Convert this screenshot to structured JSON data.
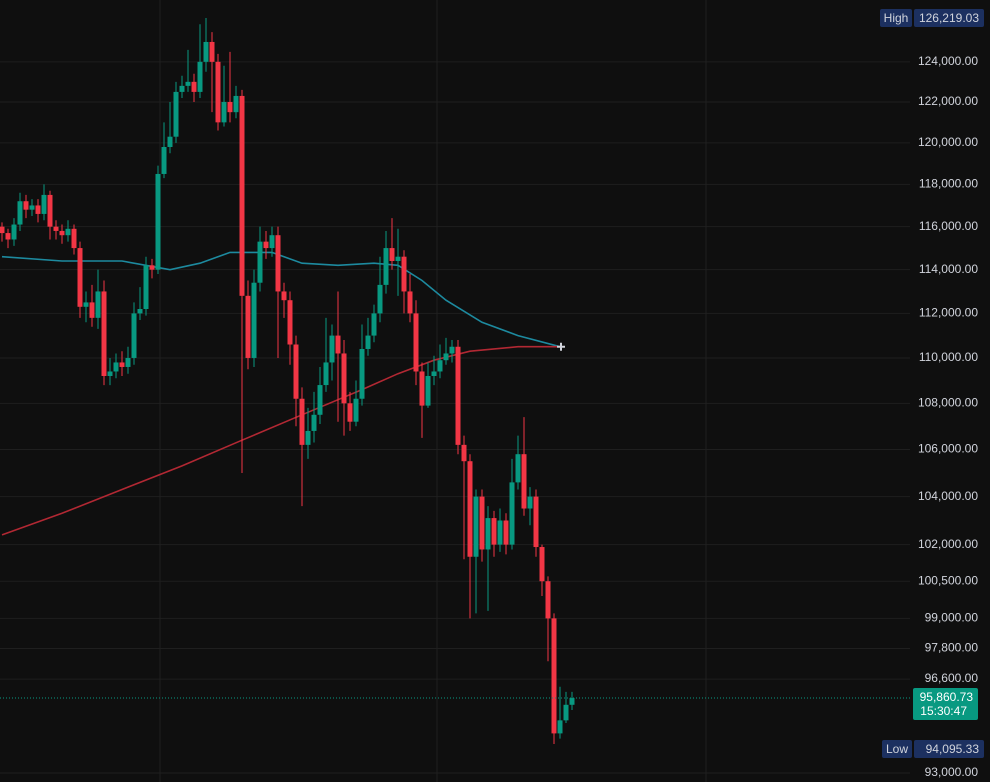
{
  "chart_data": {
    "type": "candlestick",
    "log_scale": true,
    "grid": true,
    "up_color": "#089981",
    "down_color": "#f23645",
    "ylim": [
      92660,
      127140
    ],
    "yticks": [
      {
        "value": 124000,
        "label": "124,000.00"
      },
      {
        "value": 122000,
        "label": "122,000.00"
      },
      {
        "value": 120000,
        "label": "120,000.00"
      },
      {
        "value": 118000,
        "label": "118,000.00"
      },
      {
        "value": 116000,
        "label": "116,000.00"
      },
      {
        "value": 114000,
        "label": "114,000.00"
      },
      {
        "value": 112000,
        "label": "112,000.00"
      },
      {
        "value": 110000,
        "label": "110,000.00"
      },
      {
        "value": 108000,
        "label": "108,000.00"
      },
      {
        "value": 106000,
        "label": "106,000.00"
      },
      {
        "value": 104000,
        "label": "104,000.00"
      },
      {
        "value": 102000,
        "label": "102,000.00"
      },
      {
        "value": 100500,
        "label": "100,500.00"
      },
      {
        "value": 99000,
        "label": "99,000.00"
      },
      {
        "value": 97800,
        "label": "97,800.00"
      },
      {
        "value": 96600,
        "label": "96,600.00"
      },
      {
        "value": 93000,
        "label": "93,000.00"
      }
    ],
    "ohlc": [
      [
        116000,
        116200,
        115300,
        115700
      ],
      [
        115700,
        115900,
        115000,
        115400
      ],
      [
        115400,
        116400,
        115100,
        116100
      ],
      [
        116100,
        117600,
        115800,
        117200
      ],
      [
        117200,
        117500,
        116400,
        116800
      ],
      [
        116800,
        117300,
        116500,
        117000
      ],
      [
        117000,
        117300,
        116200,
        116600
      ],
      [
        116600,
        118000,
        116300,
        117500
      ],
      [
        117500,
        117700,
        115400,
        116000
      ],
      [
        116000,
        116300,
        115400,
        115800
      ],
      [
        115800,
        116100,
        115200,
        115600
      ],
      [
        115600,
        116300,
        115300,
        115900
      ],
      [
        115900,
        116100,
        114700,
        115000
      ],
      [
        115000,
        115300,
        111800,
        112300
      ],
      [
        112300,
        113000,
        111600,
        112500
      ],
      [
        112500,
        113300,
        111400,
        111800
      ],
      [
        111800,
        114000,
        111300,
        113000
      ],
      [
        113000,
        113500,
        108800,
        109200
      ],
      [
        109200,
        110000,
        108800,
        109400
      ],
      [
        109400,
        110200,
        109100,
        109800
      ],
      [
        109800,
        110300,
        109200,
        109600
      ],
      [
        109600,
        110500,
        109300,
        110000
      ],
      [
        110000,
        112500,
        109700,
        112000
      ],
      [
        112000,
        113200,
        111700,
        112200
      ],
      [
        112200,
        114600,
        111900,
        114200
      ],
      [
        114200,
        114500,
        113600,
        114000
      ],
      [
        114000,
        118900,
        113800,
        118500
      ],
      [
        118500,
        121000,
        118300,
        119800
      ],
      [
        119800,
        122000,
        119500,
        120300
      ],
      [
        120300,
        123000,
        120000,
        122500
      ],
      [
        122500,
        123300,
        122200,
        122800
      ],
      [
        122800,
        124600,
        122500,
        123000
      ],
      [
        123000,
        123400,
        122000,
        122500
      ],
      [
        122500,
        125900,
        122200,
        124000
      ],
      [
        124000,
        126219.03,
        123500,
        125000
      ],
      [
        125000,
        125500,
        121500,
        124000
      ],
      [
        124000,
        124400,
        120600,
        121000
      ],
      [
        121000,
        123800,
        120800,
        122000
      ],
      [
        122000,
        124500,
        121000,
        121500
      ],
      [
        121500,
        122800,
        121200,
        122300
      ],
      [
        122300,
        122600,
        105000,
        112800
      ],
      [
        112800,
        113500,
        109500,
        110000
      ],
      [
        110000,
        114000,
        109600,
        113400
      ],
      [
        113400,
        116000,
        113000,
        115300
      ],
      [
        115300,
        115800,
        114500,
        115000
      ],
      [
        115000,
        116000,
        114600,
        115600
      ],
      [
        115600,
        116000,
        110000,
        113000
      ],
      [
        113000,
        113400,
        111800,
        112600
      ],
      [
        112600,
        113000,
        109700,
        110600
      ],
      [
        110600,
        111000,
        107000,
        108200
      ],
      [
        108200,
        108700,
        103600,
        106200
      ],
      [
        106200,
        107800,
        105600,
        106800
      ],
      [
        106800,
        108500,
        106300,
        107500
      ],
      [
        107500,
        109600,
        107100,
        108800
      ],
      [
        108800,
        111800,
        108500,
        109800
      ],
      [
        109800,
        111500,
        109000,
        111000
      ],
      [
        111000,
        113000,
        107200,
        110200
      ],
      [
        110200,
        110800,
        106600,
        108000
      ],
      [
        108000,
        108500,
        106800,
        107200
      ],
      [
        107200,
        109000,
        107000,
        108200
      ],
      [
        108200,
        111500,
        107900,
        110400
      ],
      [
        110400,
        111800,
        110100,
        111000
      ],
      [
        111000,
        112400,
        110700,
        112000
      ],
      [
        112000,
        114600,
        111600,
        113300
      ],
      [
        113300,
        115800,
        112900,
        115000
      ],
      [
        115000,
        116400,
        114000,
        114400
      ],
      [
        114400,
        115900,
        112800,
        114600
      ],
      [
        114600,
        114900,
        112000,
        113000
      ],
      [
        113000,
        113800,
        111600,
        112000
      ],
      [
        112000,
        112600,
        108800,
        109400
      ],
      [
        109400,
        109800,
        106500,
        107900
      ],
      [
        107900,
        109800,
        107800,
        109200
      ],
      [
        109200,
        110100,
        108800,
        109400
      ],
      [
        109400,
        110600,
        109100,
        109900
      ],
      [
        109900,
        110900,
        109700,
        110200
      ],
      [
        110200,
        110800,
        109800,
        110500
      ],
      [
        110500,
        110800,
        105800,
        106200
      ],
      [
        106200,
        106600,
        101400,
        105500
      ],
      [
        105500,
        105800,
        99000,
        101500
      ],
      [
        101500,
        104300,
        99200,
        104000
      ],
      [
        104000,
        104300,
        101300,
        101800
      ],
      [
        101800,
        103600,
        99300,
        103100
      ],
      [
        103100,
        103400,
        101500,
        102000
      ],
      [
        102000,
        103500,
        101700,
        103000
      ],
      [
        103000,
        103300,
        101600,
        102000
      ],
      [
        102000,
        105600,
        101800,
        104600
      ],
      [
        104600,
        106600,
        104300,
        105800
      ],
      [
        105800,
        107400,
        103200,
        103500
      ],
      [
        103500,
        104400,
        102800,
        104000
      ],
      [
        104000,
        104300,
        101500,
        101900
      ],
      [
        101900,
        102000,
        99900,
        100500
      ],
      [
        100500,
        100700,
        97300,
        99000
      ],
      [
        99000,
        99200,
        94095.33,
        94500
      ],
      [
        94500,
        96300,
        94300,
        95000
      ],
      [
        95000,
        96100,
        94900,
        95600
      ],
      [
        95600,
        96100,
        95400,
        95860.73
      ]
    ],
    "moving_averages": [
      {
        "color": "#1d8a9f",
        "x": [
          0,
          10,
          20,
          28,
          33,
          38,
          45,
          50,
          56,
          62,
          66,
          70,
          74,
          80,
          86,
          93
        ],
        "values": [
          114600,
          114400,
          114400,
          114000,
          114300,
          114800,
          114800,
          114300,
          114200,
          114300,
          114200,
          113500,
          112600,
          111600,
          111000,
          110500
        ]
      },
      {
        "color": "#b22833",
        "x": [
          0,
          10,
          20,
          30,
          40,
          50,
          60,
          66,
          72,
          78,
          86,
          93
        ],
        "values": [
          102400,
          103300,
          104300,
          105300,
          106400,
          107500,
          108600,
          109300,
          109900,
          110300,
          110500,
          110500
        ]
      }
    ],
    "high_label": "High",
    "high_value": "126,219.03",
    "low_label": "Low",
    "low_value": "94,095.33",
    "last_price": "95,860.73",
    "countdown": "15:30:47"
  }
}
